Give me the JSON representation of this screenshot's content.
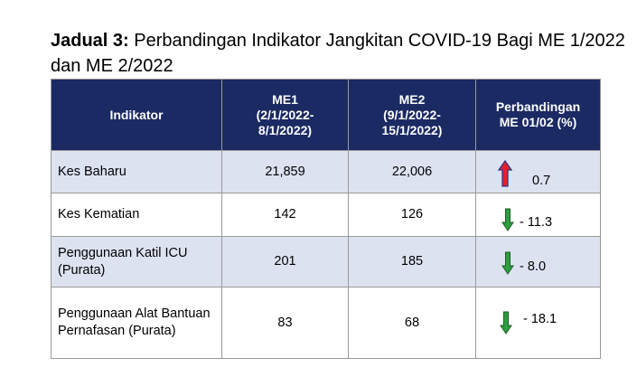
{
  "caption": {
    "label": "Jadual 3:",
    "text": " Perbandingan Indikator Jangkitan COVID-19 Bagi ME 1/2022 dan ME 2/2022"
  },
  "table": {
    "headers": [
      "Indikator",
      "ME1 (2/1/2022- 8/1/2022)",
      "ME2 (9/1/2022- 15/1/2022)",
      "Perbandingan ME 01/02 (%)"
    ],
    "rows": [
      {
        "indicator": "Kes Baharu",
        "me1": "21,859",
        "me2": "22,006",
        "change": "0.7",
        "direction": "up",
        "arrow_color": "#e8202a"
      },
      {
        "indicator": "Kes Kematian",
        "me1": "142",
        "me2": "126",
        "change": "- 11.3",
        "direction": "down",
        "arrow_color": "#2e9e3f"
      },
      {
        "indicator": "Penggunaan Katil ICU (Purata)",
        "me1": "201",
        "me2": "185",
        "change": "- 8.0",
        "direction": "down",
        "arrow_color": "#2e9e3f"
      },
      {
        "indicator": "Penggunaan Alat Bantuan Pernafasan (Purata)",
        "me1": "83",
        "me2": "68",
        "change": "- 18.1",
        "direction": "down",
        "arrow_color": "#2e9e3f"
      }
    ]
  }
}
